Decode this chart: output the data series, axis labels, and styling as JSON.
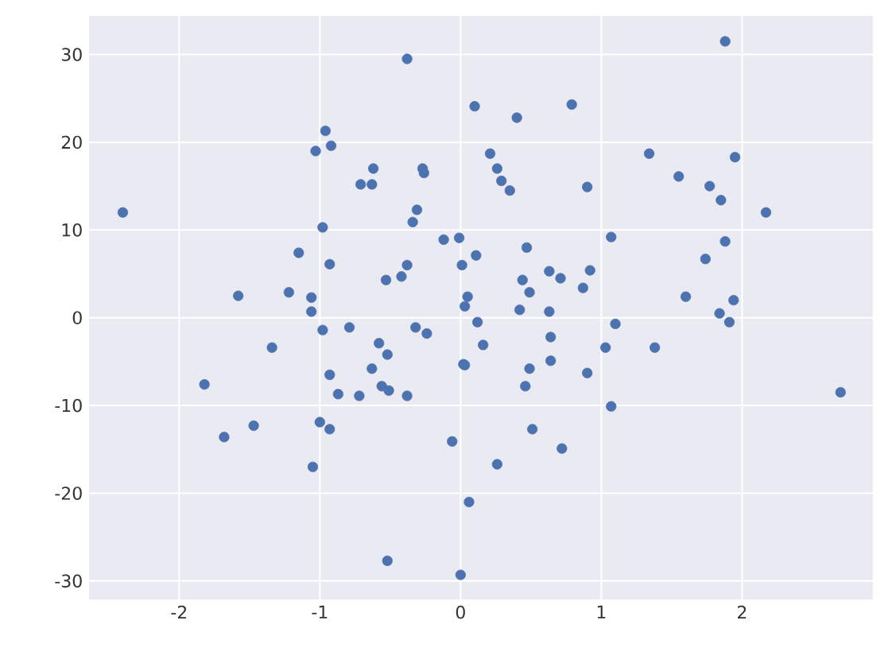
{
  "chart_data": {
    "type": "scatter",
    "color": "#4c72b0",
    "marker": "circle",
    "grid": true,
    "xlim": [
      -2.64,
      2.93
    ],
    "ylim": [
      -32.1,
      34.4
    ],
    "xticks": [
      -2,
      -1,
      0,
      1,
      2
    ],
    "yticks": [
      -30,
      -20,
      -10,
      0,
      10,
      20,
      30
    ],
    "x": [
      -2.4,
      -1.82,
      -1.68,
      -1.58,
      -1.47,
      -1.34,
      -1.22,
      -1.15,
      -1.06,
      -1.06,
      -1.05,
      -1.03,
      -1.0,
      -0.98,
      -0.98,
      -0.96,
      -0.93,
      -0.93,
      -0.93,
      -0.92,
      -0.87,
      -0.79,
      -0.72,
      -0.71,
      -0.63,
      -0.62,
      -0.63,
      -0.58,
      -0.56,
      -0.53,
      -0.52,
      -0.51,
      -0.52,
      -0.42,
      -0.38,
      -0.38,
      -0.38,
      -0.34,
      -0.31,
      -0.32,
      -0.27,
      -0.26,
      -0.24,
      -0.12,
      -0.06,
      -0.01,
      0.0,
      0.01,
      0.02,
      0.05,
      0.03,
      0.03,
      0.06,
      0.1,
      0.11,
      0.12,
      0.16,
      0.21,
      0.26,
      0.26,
      0.29,
      0.35,
      0.4,
      0.42,
      0.44,
      0.46,
      0.47,
      0.49,
      0.49,
      0.51,
      0.63,
      0.63,
      0.64,
      0.64,
      0.71,
      0.72,
      0.79,
      0.87,
      0.9,
      0.92,
      0.9,
      1.07,
      1.03,
      1.07,
      1.1,
      1.34,
      1.38,
      1.55,
      1.6,
      1.77,
      1.74,
      1.84,
      1.85,
      1.88,
      1.88,
      1.91,
      1.94,
      1.95,
      2.17,
      2.7
    ],
    "values": [
      12.0,
      -7.6,
      -13.6,
      2.5,
      -12.3,
      -3.4,
      2.9,
      7.4,
      2.3,
      0.7,
      -17.0,
      19.0,
      -11.9,
      10.3,
      -1.4,
      21.3,
      6.1,
      -6.5,
      -12.7,
      19.6,
      -8.7,
      -1.1,
      -8.9,
      15.2,
      15.2,
      17.0,
      -5.8,
      -2.9,
      -7.8,
      4.3,
      -4.2,
      -8.3,
      -27.7,
      4.7,
      29.5,
      6.0,
      -8.9,
      10.9,
      12.3,
      -1.1,
      17.0,
      16.5,
      -1.8,
      8.9,
      -14.1,
      9.1,
      -29.3,
      6.0,
      -5.3,
      2.4,
      1.3,
      -5.4,
      -21.0,
      24.1,
      7.1,
      -0.5,
      -3.1,
      18.7,
      17.0,
      -16.7,
      15.6,
      14.5,
      22.8,
      0.9,
      4.3,
      -7.8,
      8.0,
      2.9,
      -5.8,
      -12.7,
      5.3,
      0.7,
      -2.2,
      -4.9,
      4.5,
      -14.9,
      24.3,
      3.4,
      14.9,
      5.4,
      -6.3,
      9.2,
      -3.4,
      -10.1,
      -0.7,
      18.7,
      -3.4,
      16.1,
      2.4,
      15.0,
      6.7,
      0.5,
      13.4,
      8.7,
      31.5,
      -0.5,
      2.0,
      18.3,
      12.0,
      -8.5
    ]
  }
}
